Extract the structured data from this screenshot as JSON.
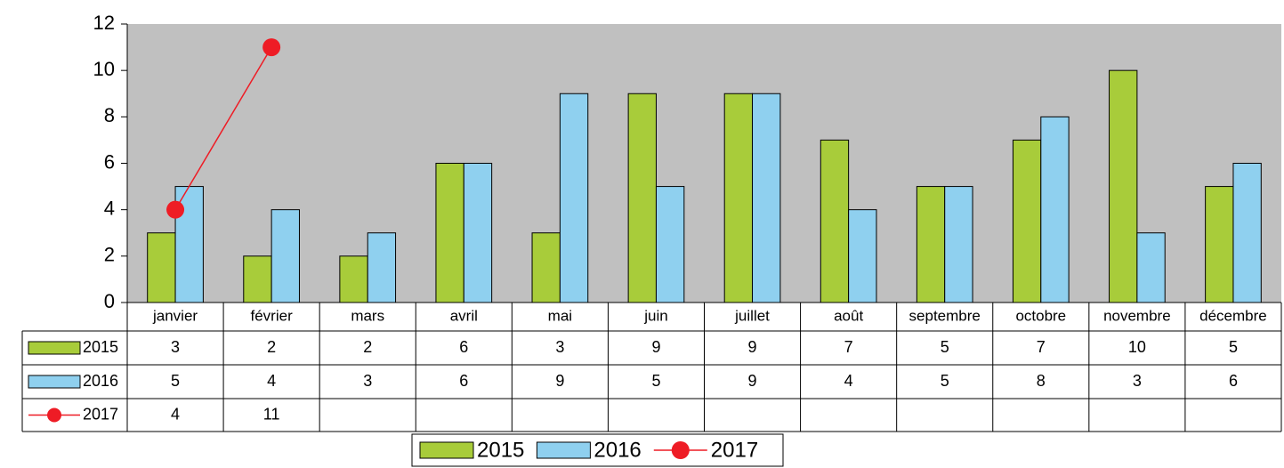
{
  "chart_data": {
    "type": "bar",
    "categories": [
      "janvier",
      "février",
      "mars",
      "avril",
      "mai",
      "juin",
      "juillet",
      "août",
      "septembre",
      "octobre",
      "novembre",
      "décembre"
    ],
    "series": [
      {
        "name": "2015",
        "type": "bar",
        "color": "#a8cc3a",
        "values": [
          3,
          2,
          2,
          6,
          3,
          9,
          9,
          7,
          5,
          7,
          10,
          5
        ]
      },
      {
        "name": "2016",
        "type": "bar",
        "color": "#8fd0ef",
        "values": [
          5,
          4,
          3,
          6,
          9,
          5,
          9,
          4,
          5,
          8,
          3,
          6
        ]
      },
      {
        "name": "2017",
        "type": "line",
        "color": "#ee1c25",
        "values": [
          4,
          11,
          null,
          null,
          null,
          null,
          null,
          null,
          null,
          null,
          null,
          null
        ]
      }
    ],
    "ylim": [
      0,
      12
    ],
    "yticks": [
      0,
      2,
      4,
      6,
      8,
      10,
      12
    ],
    "grid": false,
    "data_table": true,
    "legend": "bottom"
  }
}
